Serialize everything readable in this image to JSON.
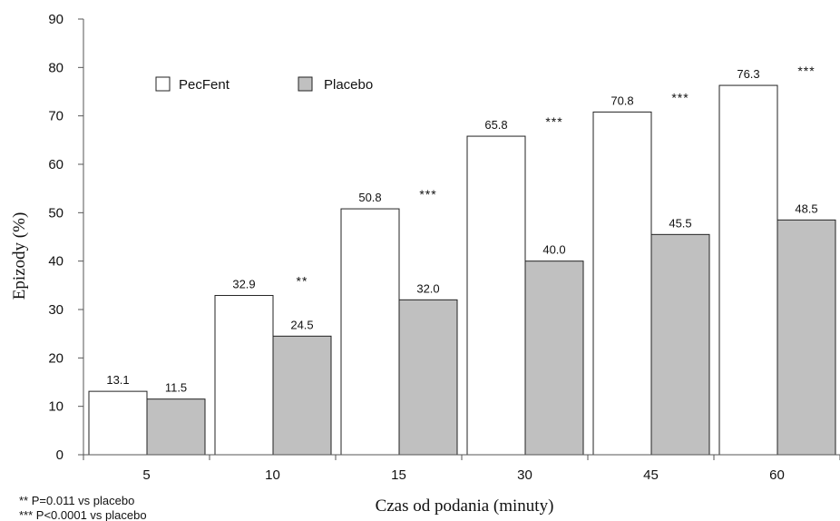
{
  "chart_data": {
    "type": "bar",
    "title": "",
    "xlabel": "Czas od podania (minuty)",
    "ylabel": "Epizody (%)",
    "ylim": [
      0,
      90
    ],
    "yticks": [
      "0",
      "10",
      "20",
      "30",
      "40",
      "50",
      "60",
      "70",
      "80",
      "90"
    ],
    "categories": [
      "5",
      "10",
      "15",
      "30",
      "45",
      "60"
    ],
    "series": [
      {
        "name": "PecFent",
        "color": "#ffffff",
        "values": [
          13.1,
          32.9,
          50.8,
          65.8,
          70.8,
          76.3
        ],
        "labels": [
          "13.1",
          "32.9",
          "50.8",
          "65.8",
          "70.8",
          "76.3"
        ]
      },
      {
        "name": "Placebo",
        "color": "#c0c0c0",
        "values": [
          11.5,
          24.5,
          32.0,
          40.0,
          45.5,
          48.5
        ],
        "labels": [
          "11.5",
          "24.5",
          "32.0",
          "40.0",
          "45.5",
          "48.5"
        ]
      }
    ],
    "significance": [
      "",
      "**",
      "***",
      "***",
      "***",
      "***"
    ],
    "legend_position": "top-left",
    "grid": false,
    "footnotes": [
      "** P=0.011 vs placebo",
      "*** P<0.0001 vs placebo"
    ]
  }
}
